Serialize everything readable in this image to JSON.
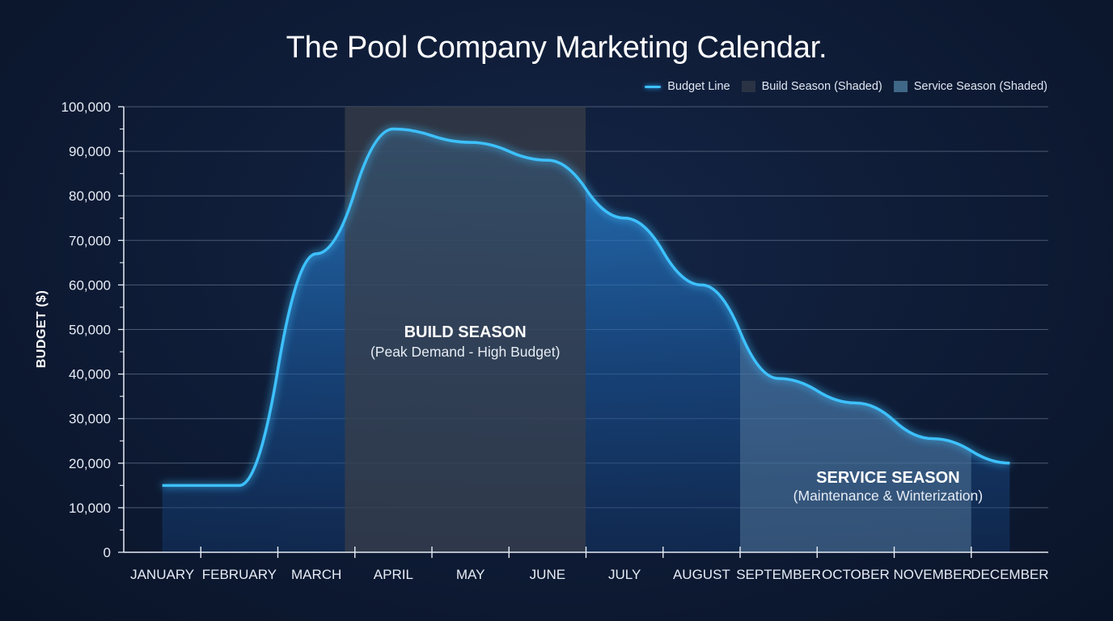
{
  "chart_data": {
    "type": "area",
    "title": "The Pool Company Marketing Calendar.",
    "xlabel": "",
    "ylabel": "BUDGET ($)",
    "ylim": [
      0,
      100000
    ],
    "yticks": [
      "0",
      "10,000",
      "20,000",
      "30,000",
      "40,000",
      "50,000",
      "60,000",
      "70,000",
      "80,000",
      "90,000",
      "100,000"
    ],
    "categories": [
      "JANUARY",
      "FEBRUARY",
      "MARCH",
      "APRIL",
      "MAY",
      "JUNE",
      "JULY",
      "AUGUST",
      "SEPTEMBER",
      "OCTOBER",
      "NOVEMBER",
      "DECEMBER"
    ],
    "series": [
      {
        "name": "Budget Line",
        "values": [
          15000,
          15000,
          67000,
          95000,
          92000,
          88000,
          75000,
          60000,
          39000,
          33500,
          25500,
          20000
        ]
      }
    ],
    "grid": true,
    "legend_position": "top-right",
    "legend": [
      {
        "label": "Budget Line",
        "kind": "line",
        "color": "#3ec1ff"
      },
      {
        "label": "Build Season (Shaded)",
        "kind": "box",
        "color": "#2a3344"
      },
      {
        "label": "Service Season (Shaded)",
        "kind": "box",
        "color": "#3f6787"
      }
    ],
    "annotations": [
      {
        "title": "BUILD SEASON",
        "subtitle": "(Peak Demand - High Budget)",
        "range": [
          "MARCH",
          "JUNE"
        ]
      },
      {
        "title": "SERVICE SEASON",
        "subtitle": "(Maintenance & Winterization)",
        "range": [
          "AUGUST",
          "NOVEMBER"
        ]
      }
    ],
    "colors": {
      "line": "#3ec1ff",
      "build_shade": "#3a3f48",
      "service_shade": "#5f86a6",
      "grid": "#5f6f88",
      "axis": "#e6ecf5"
    }
  }
}
